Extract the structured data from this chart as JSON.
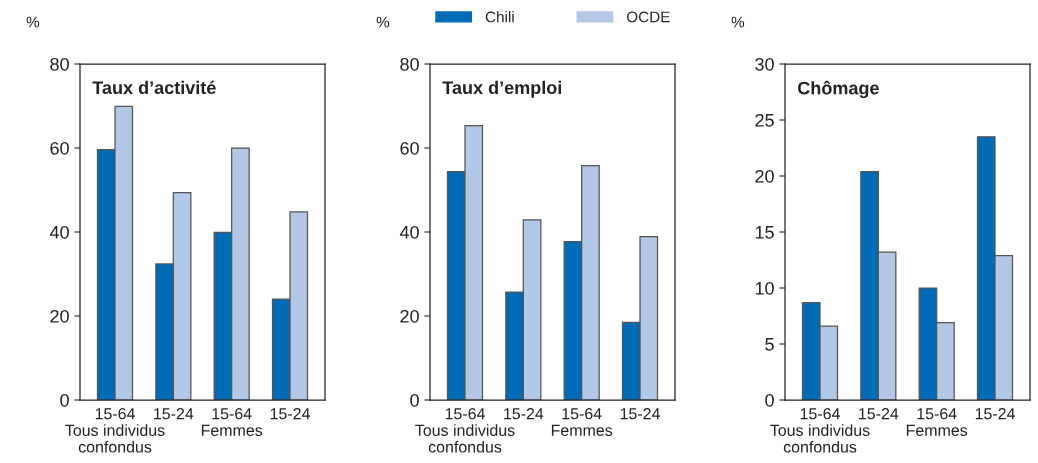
{
  "chart_data": [
    {
      "type": "bar",
      "title": "Taux d’activité",
      "ylabel": "%",
      "categories": [
        "15-64\nTous individus\nconfondus",
        "15-24",
        "15-64\nFemmes",
        "15-24"
      ],
      "series": [
        {
          "color": "#006bb6",
          "values": [
            59.6,
            32.4,
            39.9,
            24.0
          ]
        },
        {
          "color": "#b3c7e6",
          "values": [
            69.9,
            49.4,
            60.0,
            44.8
          ]
        }
      ],
      "ylim": [
        0,
        80
      ],
      "yticks": [
        0,
        20,
        40,
        60,
        80
      ]
    },
    {
      "type": "bar",
      "title": "Taux d’emploi",
      "ylabel": "%",
      "categories": [
        "15-64\nTous individus\nconfondus",
        "15-24",
        "15-64\nFemmes",
        "15-24"
      ],
      "series": [
        {
          "name": "Chili",
          "color": "#006bb6",
          "values": [
            54.4,
            25.7,
            37.7,
            18.5
          ]
        },
        {
          "name": "OCDE",
          "color": "#b3c7e6",
          "values": [
            65.3,
            42.9,
            55.8,
            38.9
          ]
        }
      ],
      "ylim": [
        0,
        80
      ],
      "yticks": [
        0,
        20,
        40,
        60,
        80
      ],
      "legend": "top"
    },
    {
      "type": "bar",
      "title": "Chômage",
      "ylabel": "%",
      "categories": [
        "15-64\nTous individus\nconfondus",
        "15-24",
        "15-64\nFemmes",
        "15-24"
      ],
      "series": [
        {
          "color": "#006bb6",
          "values": [
            8.7,
            20.4,
            10.0,
            23.5
          ]
        },
        {
          "color": "#b3c7e6",
          "values": [
            6.6,
            13.2,
            6.9,
            12.9
          ]
        }
      ],
      "ylim": [
        0,
        30
      ],
      "yticks": [
        0,
        5,
        10,
        15,
        20,
        25,
        30
      ]
    }
  ]
}
